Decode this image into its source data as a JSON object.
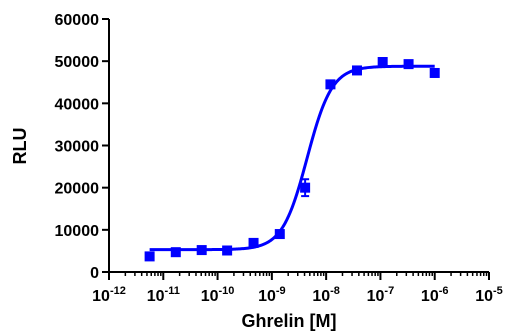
{
  "chart_data": {
    "type": "scatter",
    "title": "",
    "xlabel": "Ghrelin [M]",
    "ylabel": "RLU",
    "x_scale": "log",
    "xlim": [
      1e-12,
      1e-05
    ],
    "ylim": [
      0,
      60000
    ],
    "x_ticks": [
      {
        "value": 1e-12,
        "base": "10",
        "exp": "-12"
      },
      {
        "value": 1e-11,
        "base": "10",
        "exp": "-11"
      },
      {
        "value": 1e-10,
        "base": "10",
        "exp": "-10"
      },
      {
        "value": 1e-09,
        "base": "10",
        "exp": "-9"
      },
      {
        "value": 1e-08,
        "base": "10",
        "exp": "-8"
      },
      {
        "value": 1e-07,
        "base": "10",
        "exp": "-7"
      },
      {
        "value": 1e-06,
        "base": "10",
        "exp": "-6"
      },
      {
        "value": 1e-05,
        "base": "10",
        "exp": "-5"
      }
    ],
    "y_ticks": [
      {
        "value": 0,
        "label": "0"
      },
      {
        "value": 10000,
        "label": "10000"
      },
      {
        "value": 20000,
        "label": "20000"
      },
      {
        "value": 30000,
        "label": "30000"
      },
      {
        "value": 40000,
        "label": "40000"
      },
      {
        "value": 50000,
        "label": "50000"
      },
      {
        "value": 60000,
        "label": "60000"
      }
    ],
    "grid": false,
    "legend": "none",
    "series": [
      {
        "color": "#0000ff",
        "marker": "square",
        "points": [
          {
            "x": 5.6e-12,
            "y": 3700
          },
          {
            "x": 1.7e-11,
            "y": 4700
          },
          {
            "x": 5.1e-11,
            "y": 5200
          },
          {
            "x": 1.5e-10,
            "y": 5100
          },
          {
            "x": 4.6e-10,
            "y": 6900
          },
          {
            "x": 1.4e-09,
            "y": 9000
          },
          {
            "x": 4.1e-09,
            "y": 20000,
            "err": 2000
          },
          {
            "x": 1.2e-08,
            "y": 44500
          },
          {
            "x": 3.7e-08,
            "y": 47800
          },
          {
            "x": 1.1e-07,
            "y": 49800
          },
          {
            "x": 3.3e-07,
            "y": 49300
          },
          {
            "x": 1e-06,
            "y": 47200
          }
        ],
        "fit": {
          "model": "sigmoidal dose-response",
          "bottom": 5300,
          "top": 48800,
          "log_ec50": -8.35,
          "hill_slope": 1.9,
          "x_range": [
            5.6e-12,
            1e-06
          ]
        }
      }
    ]
  }
}
